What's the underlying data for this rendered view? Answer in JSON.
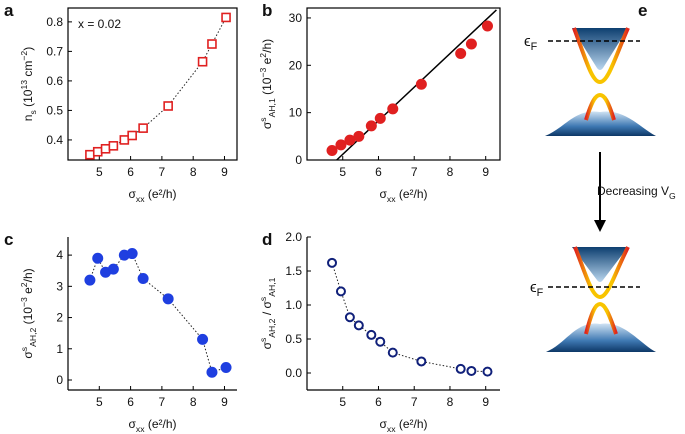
{
  "chart_data": [
    {
      "type": "scatter",
      "panel": "a",
      "annotation": "x = 0.02",
      "frame": "box",
      "marker": "square-open",
      "color": "#e02020",
      "connect": true,
      "x": [
        4.7,
        4.95,
        5.2,
        5.45,
        5.8,
        6.05,
        6.4,
        7.2,
        8.3,
        8.6,
        9.05
      ],
      "values": [
        0.35,
        0.36,
        0.37,
        0.38,
        0.4,
        0.415,
        0.44,
        0.515,
        0.665,
        0.725,
        0.815
      ],
      "xlim": [
        4.0,
        9.4
      ],
      "xticks": [
        5,
        6,
        7,
        8,
        9
      ],
      "ylim": [
        0.332,
        0.847
      ],
      "yticks": [
        0.4,
        0.5,
        0.6,
        0.7,
        0.8
      ],
      "x_label": [
        {
          "text": "σ",
          "script": "normal"
        },
        {
          "text": "xx",
          "script": "sub"
        },
        {
          "text": " (e²/h)",
          "script": "normal"
        }
      ],
      "y_label": [
        {
          "text": "n",
          "script": "normal"
        },
        {
          "text": "s",
          "script": "sub"
        },
        {
          "text": " (10",
          "script": "normal"
        },
        {
          "text": "13",
          "script": "sup"
        },
        {
          "text": " cm",
          "script": "normal"
        },
        {
          "text": "−2",
          "script": "sup"
        },
        {
          "text": ")",
          "script": "normal"
        }
      ]
    },
    {
      "type": "scatter",
      "panel": "b",
      "frame": "box",
      "marker": "circle-filled",
      "color": "#e02020",
      "connect": false,
      "x": [
        4.7,
        4.95,
        5.2,
        5.45,
        5.8,
        6.05,
        6.4,
        7.2,
        8.3,
        8.6,
        9.05
      ],
      "values": [
        2.0,
        3.2,
        4.2,
        5.0,
        7.2,
        8.8,
        10.8,
        16.0,
        22.5,
        24.5,
        28.3
      ],
      "fit": {
        "x": [
          4.83,
          9.3
        ],
        "values": [
          0,
          31.7
        ],
        "color": "#000000"
      },
      "xlim": [
        4.0,
        9.4
      ],
      "xticks": [
        5,
        6,
        7,
        8,
        9
      ],
      "ylim": [
        0,
        32.1
      ],
      "yticks": [
        0,
        10,
        20,
        30
      ],
      "x_label": [
        {
          "text": "σ",
          "script": "normal"
        },
        {
          "text": "xx",
          "script": "sub"
        },
        {
          "text": " (e²/h)",
          "script": "normal"
        }
      ],
      "y_label": [
        {
          "text": "σ",
          "script": "normal"
        },
        {
          "text": "s",
          "script": "sup"
        },
        {
          "text": "AH,1",
          "script": "sub"
        },
        {
          "text": " (10",
          "script": "normal"
        },
        {
          "text": "−3",
          "script": "sup"
        },
        {
          "text": " e",
          "script": "normal"
        },
        {
          "text": "2",
          "script": "sup"
        },
        {
          "text": "/h)",
          "script": "normal"
        }
      ]
    },
    {
      "type": "scatter",
      "panel": "c",
      "frame": "axes",
      "marker": "circle-filled",
      "color": "#1f3fe0",
      "connect": true,
      "x": [
        4.7,
        4.95,
        5.2,
        5.45,
        5.8,
        6.05,
        6.4,
        7.2,
        8.3,
        8.6,
        9.05
      ],
      "values": [
        3.2,
        3.9,
        3.45,
        3.55,
        4.0,
        4.05,
        3.25,
        2.6,
        1.3,
        0.25,
        0.4
      ],
      "xlim": [
        4.0,
        9.4
      ],
      "xticks": [
        5,
        6,
        7,
        8,
        9
      ],
      "ylim": [
        -0.32,
        4.58
      ],
      "yticks": [
        0,
        1,
        2,
        3,
        4
      ],
      "x_label": [
        {
          "text": "σ",
          "script": "normal"
        },
        {
          "text": "xx",
          "script": "sub"
        },
        {
          "text": " (e²/h)",
          "script": "normal"
        }
      ],
      "y_label": [
        {
          "text": "σ",
          "script": "normal"
        },
        {
          "text": "s",
          "script": "sup"
        },
        {
          "text": "AH,2",
          "script": "sub"
        },
        {
          "text": " (10",
          "script": "normal"
        },
        {
          "text": "−3",
          "script": "sup"
        },
        {
          "text": " e",
          "script": "normal"
        },
        {
          "text": "2",
          "script": "sup"
        },
        {
          "text": "/h)",
          "script": "normal"
        }
      ]
    },
    {
      "type": "scatter",
      "panel": "d",
      "frame": "axes",
      "marker": "circle-open",
      "color": "#10207a",
      "connect": true,
      "x": [
        4.7,
        4.95,
        5.2,
        5.45,
        5.8,
        6.05,
        6.4,
        7.2,
        8.3,
        8.6,
        9.05
      ],
      "values": [
        1.62,
        1.2,
        0.82,
        0.7,
        0.56,
        0.46,
        0.3,
        0.17,
        0.06,
        0.03,
        0.02
      ],
      "xlim": [
        4.0,
        9.4
      ],
      "xticks": [
        5,
        6,
        7,
        8,
        9
      ],
      "ylim": [
        -0.25,
        2.0
      ],
      "yticks": [
        {
          "value": 0,
          "label": "0.0"
        },
        0.5,
        {
          "value": 1,
          "label": "1.0"
        },
        1.5,
        {
          "value": 2,
          "label": "2.0"
        }
      ],
      "x_label": [
        {
          "text": "σ",
          "script": "normal"
        },
        {
          "text": "xx",
          "script": "sub"
        },
        {
          "text": " (e²/h)",
          "script": "normal"
        }
      ],
      "y_label": [
        {
          "text": "σ",
          "script": "normal"
        },
        {
          "text": "s",
          "script": "sup"
        },
        {
          "text": "AH,2",
          "script": "sub"
        },
        {
          "text": " / σ",
          "script": "normal"
        },
        {
          "text": "s",
          "script": "sup"
        },
        {
          "text": "AH,1",
          "script": "sub"
        }
      ]
    }
  ],
  "diagram": {
    "panel": "e",
    "ef_top": [
      {
        "text": "ϵ",
        "script": "normal"
      },
      {
        "text": "F",
        "script": "sub"
      }
    ],
    "arrow_text": [
      {
        "text": "Decreasing ",
        "script": "normal"
      },
      {
        "text": "V",
        "script": "normal"
      },
      {
        "text": "G",
        "script": "sub"
      }
    ],
    "ef_bottom": [
      {
        "text": "ϵ",
        "script": "normal"
      },
      {
        "text": "F",
        "script": "sub"
      }
    ]
  }
}
